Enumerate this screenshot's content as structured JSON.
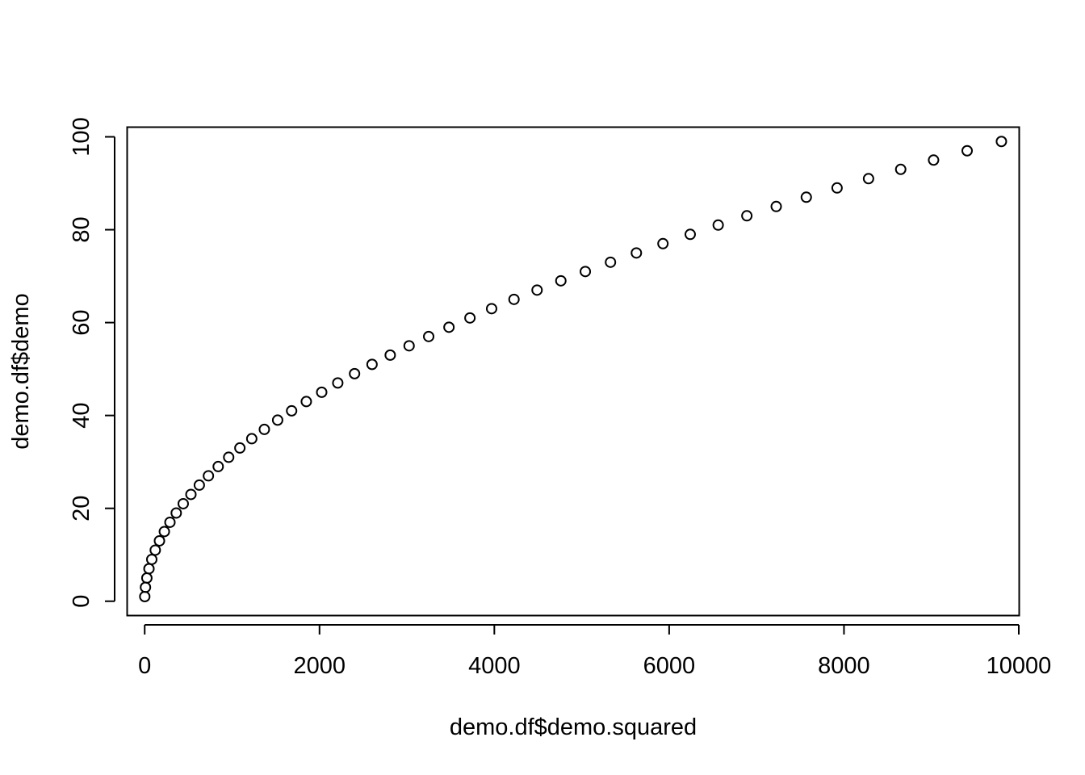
{
  "chart_data": {
    "type": "scatter",
    "title": "",
    "xlabel": "demo.df$demo.squared",
    "ylabel": "demo.df$demo",
    "xlim": [
      -196,
      10000
    ],
    "ylim": [
      -3,
      102
    ],
    "x_ticks": [
      0,
      2000,
      4000,
      6000,
      8000,
      10000
    ],
    "y_ticks": [
      0,
      20,
      40,
      60,
      80,
      100
    ],
    "grid": false,
    "marker": "open-circle",
    "marker_color": "#000000",
    "series": [
      {
        "x": [
          1,
          9,
          25,
          49,
          81,
          121,
          169,
          225,
          289,
          361,
          441,
          529,
          625,
          729,
          841,
          961,
          1089,
          1225,
          1369,
          1521,
          1681,
          1849,
          2025,
          2209,
          2401,
          2601,
          2809,
          3025,
          3249,
          3481,
          3721,
          3969,
          4225,
          4489,
          4761,
          5041,
          5329,
          5625,
          5929,
          6241,
          6561,
          6889,
          7225,
          7569,
          7921,
          8281,
          8649,
          9025,
          9409,
          9801
        ],
        "y": [
          1,
          3,
          5,
          7,
          9,
          11,
          13,
          15,
          17,
          19,
          21,
          23,
          25,
          27,
          29,
          31,
          33,
          35,
          37,
          39,
          41,
          43,
          45,
          47,
          49,
          51,
          53,
          55,
          57,
          59,
          61,
          63,
          65,
          67,
          69,
          71,
          73,
          75,
          77,
          79,
          81,
          83,
          85,
          87,
          89,
          91,
          93,
          95,
          97,
          99
        ]
      }
    ]
  }
}
